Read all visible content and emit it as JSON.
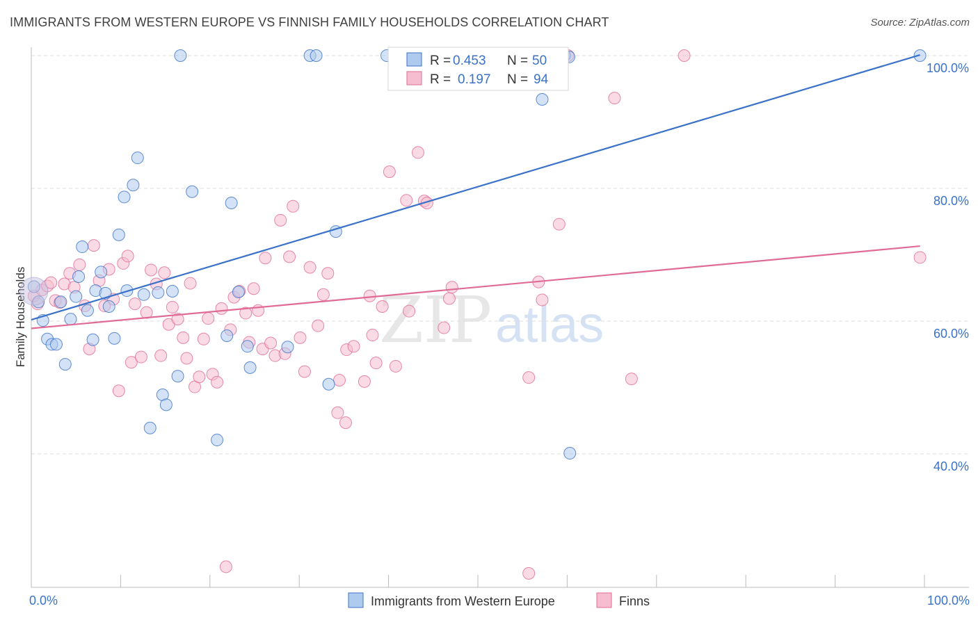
{
  "title": "IMMIGRANTS FROM WESTERN EUROPE VS FINNISH FAMILY HOUSEHOLDS CORRELATION CHART",
  "source": "Source: ZipAtlas.com",
  "watermark": {
    "zip": "ZIP",
    "atlas": "atlas"
  },
  "colors": {
    "blue": "#3a72c8",
    "pink": "#e06b96",
    "blue_fill": "#aecbef",
    "pink_fill": "#f6bdd0"
  },
  "stats": {
    "blue": {
      "r_label": "R =",
      "r_value": "0.453",
      "n_label": "N =",
      "n_value": "50"
    },
    "pink": {
      "r_label": "R =",
      "r_value": "0.197",
      "n_label": "N =",
      "n_value": "94"
    }
  },
  "chart_data": {
    "type": "scatter",
    "title": "IMMIGRANTS FROM WESTERN EUROPE VS FINNISH FAMILY HOUSEHOLDS CORRELATION CHART",
    "xlabel": "",
    "ylabel": "Family Households",
    "xlim": [
      0,
      100
    ],
    "ylim": [
      22,
      102
    ],
    "x_tick_labels": [
      "0.0%",
      "100.0%"
    ],
    "y_ticks": [
      {
        "value": 40,
        "label": "40.0%"
      },
      {
        "value": 60,
        "label": "60.0%"
      },
      {
        "value": 80,
        "label": "80.0%"
      },
      {
        "value": 100,
        "label": "100.0%"
      }
    ],
    "legend": [
      "Immigrants from Western Europe",
      "Finns"
    ],
    "series": [
      {
        "name": "Immigrants from Western Europe",
        "r": 0.453,
        "n": 50,
        "trend": {
          "x0": 0,
          "y0": 60.2,
          "x1": 99.5,
          "y1": 100.1
        },
        "points": [
          [
            0.3,
            65.2
          ],
          [
            0.8,
            62.9
          ],
          [
            1.3,
            60.1
          ],
          [
            1.8,
            57.3
          ],
          [
            2.3,
            56.5
          ],
          [
            2.8,
            56.5
          ],
          [
            3.3,
            62.9
          ],
          [
            3.8,
            53.5
          ],
          [
            4.4,
            60.3
          ],
          [
            5,
            63.7
          ],
          [
            5.3,
            66.7
          ],
          [
            5.7,
            71.2
          ],
          [
            6.3,
            61.6
          ],
          [
            6.9,
            57.2
          ],
          [
            7.2,
            64.6
          ],
          [
            7.8,
            67.4
          ],
          [
            8.3,
            64.2
          ],
          [
            8.7,
            62.2
          ],
          [
            9.3,
            57.4
          ],
          [
            9.8,
            73
          ],
          [
            10.4,
            78.7
          ],
          [
            10.7,
            64.6
          ],
          [
            11.4,
            80.5
          ],
          [
            11.9,
            84.6
          ],
          [
            12.6,
            64
          ],
          [
            13.3,
            43.9
          ],
          [
            14.2,
            64.3
          ],
          [
            14.7,
            48.9
          ],
          [
            15.1,
            47.4
          ],
          [
            15.8,
            64.5
          ],
          [
            16.4,
            51.7
          ],
          [
            16.7,
            100
          ],
          [
            18,
            79.5
          ],
          [
            20.8,
            42.1
          ],
          [
            21.9,
            57.8
          ],
          [
            22.4,
            77.8
          ],
          [
            23.2,
            64.4
          ],
          [
            24.2,
            56.2
          ],
          [
            24.5,
            53
          ],
          [
            28.7,
            56.1
          ],
          [
            31.2,
            100
          ],
          [
            31.9,
            100
          ],
          [
            33.3,
            50.5
          ],
          [
            34.1,
            73.5
          ],
          [
            39.8,
            100
          ],
          [
            59.7,
            100
          ],
          [
            60.2,
            99.8
          ],
          [
            57.2,
            93.4
          ],
          [
            60.3,
            40.1
          ],
          [
            99.5,
            100
          ]
        ]
      },
      {
        "name": "Finns",
        "r": 0.197,
        "n": 94,
        "trend": {
          "x0": 0,
          "y0": 58.9,
          "x1": 99.5,
          "y1": 71.3
        },
        "points": [
          [
            0.3,
            63.8
          ],
          [
            0.7,
            62.6
          ],
          [
            1.2,
            64.7
          ],
          [
            1.8,
            65.3
          ],
          [
            2.2,
            65.8
          ],
          [
            2.7,
            63.1
          ],
          [
            3.2,
            62.8
          ],
          [
            3.7,
            65.6
          ],
          [
            4.3,
            67.2
          ],
          [
            4.8,
            65.1
          ],
          [
            5.4,
            68.5
          ],
          [
            6,
            62.3
          ],
          [
            6.5,
            55.8
          ],
          [
            7,
            71.4
          ],
          [
            7.6,
            66.1
          ],
          [
            8.2,
            62.3
          ],
          [
            8.7,
            67.8
          ],
          [
            9.2,
            63.3
          ],
          [
            9.8,
            49.5
          ],
          [
            10.3,
            68.7
          ],
          [
            10.8,
            69.8
          ],
          [
            11.2,
            53.8
          ],
          [
            11.6,
            62.6
          ],
          [
            12.3,
            54.6
          ],
          [
            12.9,
            61.3
          ],
          [
            13.4,
            67.7
          ],
          [
            14,
            65.6
          ],
          [
            14.5,
            54.8
          ],
          [
            14.9,
            67.3
          ],
          [
            15.4,
            59.5
          ],
          [
            15.8,
            62.1
          ],
          [
            16.4,
            60.3
          ],
          [
            17,
            57.5
          ],
          [
            17.4,
            54.4
          ],
          [
            17.8,
            65.7
          ],
          [
            18.3,
            50.1
          ],
          [
            18.8,
            51.6
          ],
          [
            19.3,
            57.3
          ],
          [
            19.8,
            60.4
          ],
          [
            20.3,
            52
          ],
          [
            20.8,
            50.8
          ],
          [
            21.3,
            61.9
          ],
          [
            21.8,
            23
          ],
          [
            22.3,
            58.7
          ],
          [
            22.7,
            63.6
          ],
          [
            23.3,
            64.5
          ],
          [
            24,
            61.2
          ],
          [
            24.4,
            56.8
          ],
          [
            24.9,
            64.9
          ],
          [
            25.4,
            61.6
          ],
          [
            25.9,
            55.8
          ],
          [
            26.2,
            69.5
          ],
          [
            26.8,
            56.7
          ],
          [
            27.3,
            54.8
          ],
          [
            27.9,
            75.2
          ],
          [
            28.4,
            55.1
          ],
          [
            28.9,
            69.7
          ],
          [
            29.3,
            77.3
          ],
          [
            30.1,
            57.5
          ],
          [
            30.6,
            52.4
          ],
          [
            31.2,
            68.1
          ],
          [
            32.1,
            59.3
          ],
          [
            32.7,
            64
          ],
          [
            33.2,
            67.2
          ],
          [
            34.3,
            46.2
          ],
          [
            34.5,
            51.1
          ],
          [
            35.2,
            44.7
          ],
          [
            35.3,
            55.7
          ],
          [
            36.1,
            56.2
          ],
          [
            37.3,
            50.9
          ],
          [
            37.9,
            63.8
          ],
          [
            38.2,
            57.9
          ],
          [
            38.6,
            53.7
          ],
          [
            39.3,
            62.2
          ],
          [
            40.1,
            82.5
          ],
          [
            40.8,
            53.2
          ],
          [
            42,
            78.2
          ],
          [
            42.3,
            61.5
          ],
          [
            43.3,
            85.4
          ],
          [
            44,
            78.1
          ],
          [
            44.3,
            77.8
          ],
          [
            46.2,
            59
          ],
          [
            46.8,
            63.4
          ],
          [
            47.1,
            65.1
          ],
          [
            55.7,
            51.5
          ],
          [
            56.8,
            65.9
          ],
          [
            57.2,
            63.2
          ],
          [
            59.1,
            74.6
          ],
          [
            60.1,
            100
          ],
          [
            65.3,
            93.6
          ],
          [
            67.2,
            51.3
          ],
          [
            73.1,
            100
          ],
          [
            55.7,
            22
          ],
          [
            99.5,
            69.6
          ]
        ]
      }
    ]
  }
}
